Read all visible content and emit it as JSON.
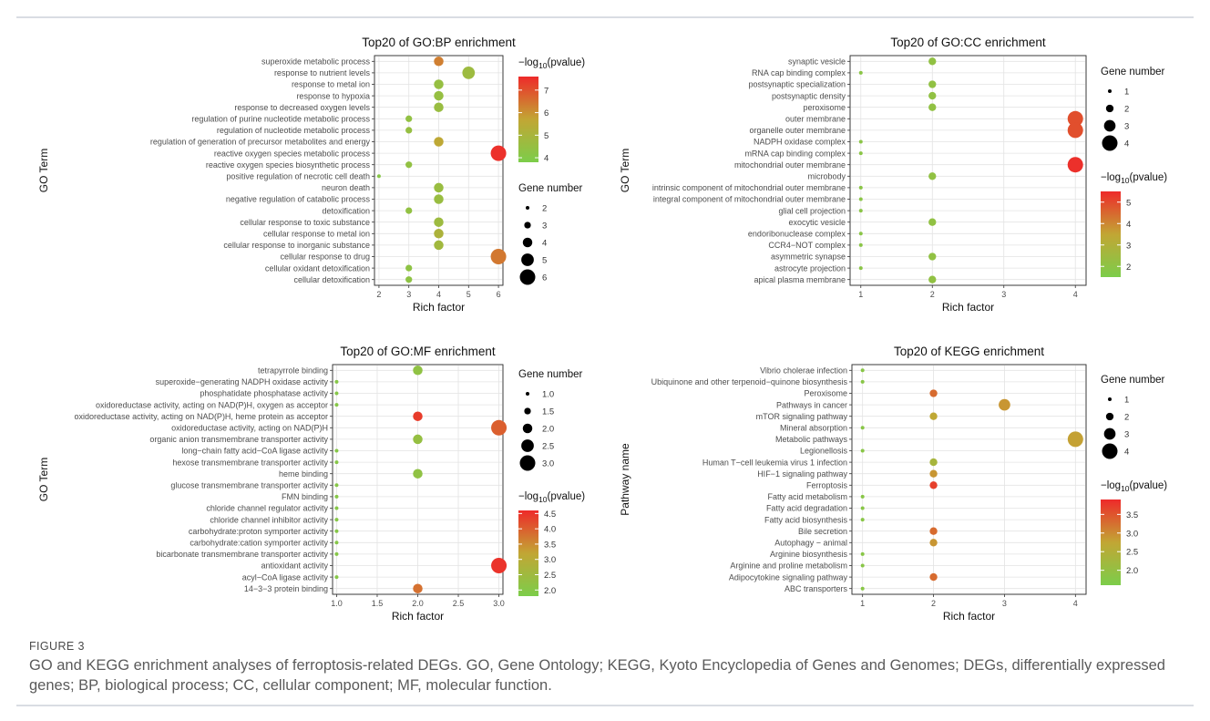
{
  "figure": {
    "label": "FIGURE 3",
    "caption": "GO and KEGG enrichment analyses of ferroptosis-related DEGs. GO, Gene Ontology; KEGG, Kyoto Encyclopedia of Genes and Genomes; DEGs, differentially expressed genes; BP, biological process; CC, cellular component; MF, molecular function."
  },
  "colors": {
    "low": "#7ccd4a",
    "mid": "#c2a634",
    "high": "#ee2a2a"
  },
  "chart_data": [
    {
      "type": "scatter",
      "title": "Top20 of GO:BP enrichment",
      "xlabel": "Rich factor",
      "ylabel": "GO Term",
      "xlim": [
        1.85,
        6.15
      ],
      "xticks": [
        2,
        3,
        4,
        5,
        6
      ],
      "grid": true,
      "terms": [
        "superoxide metabolic process",
        "response to nutrient levels",
        "response to metal ion",
        "response to hypoxia",
        "response to decreased oxygen levels",
        "regulation of purine nucleotide metabolic process",
        "regulation of nucleotide metabolic process",
        "regulation of generation of precursor metabolites and energy",
        "reactive oxygen species metabolic process",
        "reactive oxygen species biosynthetic process",
        "positive regulation of necrotic cell death",
        "neuron death",
        "negative regulation of catabolic process",
        "detoxification",
        "cellular response to toxic substance",
        "cellular response to metal ion",
        "cellular response to inorganic substance",
        "cellular response to drug",
        "cellular oxidant detoxification",
        "cellular detoxification"
      ],
      "rich_factor": [
        4,
        5,
        4,
        4,
        4,
        3,
        3,
        4,
        6,
        3,
        2,
        4,
        4,
        3,
        4,
        4,
        4,
        6,
        3,
        3
      ],
      "gene_number": [
        4,
        5,
        4,
        4,
        4,
        3,
        3,
        4,
        6,
        3,
        2,
        4,
        4,
        3,
        4,
        4,
        4,
        6,
        3,
        3
      ],
      "neg_log10_p": [
        6.3,
        4.7,
        4.5,
        4.5,
        4.6,
        4.4,
        4.5,
        5.6,
        7.5,
        4.4,
        4.1,
        4.6,
        4.6,
        4.4,
        4.7,
        5.1,
        4.8,
        6.4,
        4.3,
        4.3
      ],
      "color_legend": {
        "title_prefix": "−log",
        "title_sub": "10",
        "title_suffix": "(pvalue)",
        "ticks": [
          7,
          6,
          5,
          4
        ],
        "range": [
          3.8,
          7.6
        ]
      },
      "size_legend": {
        "title": "Gene number",
        "labels": [
          "2",
          "3",
          "4",
          "5",
          "6"
        ],
        "values": [
          2,
          3,
          4,
          5,
          6
        ]
      }
    },
    {
      "type": "scatter",
      "title": "Top20 of GO:CC enrichment",
      "xlabel": "Rich factor",
      "ylabel": "GO Term",
      "xlim": [
        0.85,
        4.15
      ],
      "xticks": [
        1,
        2,
        3,
        4
      ],
      "grid": true,
      "terms": [
        "synaptic vesicle",
        "RNA cap binding complex",
        "postsynaptic specialization",
        "postsynaptic density",
        "peroxisome",
        "outer membrane",
        "organelle outer membrane",
        "NADPH oxidase complex",
        "mRNA cap binding complex",
        "mitochondrial outer membrane",
        "microbody",
        "intrinsic component of mitochondrial outer membrane",
        "integral component of mitochondrial outer membrane",
        "glial cell projection",
        "exocytic vesicle",
        "endoribonuclease complex",
        "CCR4−NOT complex",
        "asymmetric synapse",
        "astrocyte projection",
        "apical plasma membrane"
      ],
      "rich_factor": [
        2,
        1,
        2,
        2,
        2,
        4,
        4,
        1,
        1,
        4,
        2,
        1,
        1,
        1,
        2,
        1,
        1,
        2,
        1,
        2
      ],
      "gene_number": [
        2,
        1,
        2,
        2,
        2,
        4,
        4,
        1,
        1,
        4,
        2,
        1,
        1,
        1,
        2,
        1,
        1,
        2,
        1,
        2
      ],
      "neg_log10_p": [
        2.1,
        1.9,
        2.1,
        2.1,
        2.1,
        4.9,
        4.9,
        1.9,
        1.9,
        5.4,
        2.1,
        1.9,
        1.9,
        1.9,
        2.1,
        1.9,
        1.9,
        2.1,
        1.9,
        2.1
      ],
      "color_legend": {
        "title_prefix": "−log",
        "title_sub": "10",
        "title_suffix": "(pvalue)",
        "ticks": [
          5,
          4,
          3,
          2
        ],
        "range": [
          1.5,
          5.5
        ]
      },
      "size_legend": {
        "title": "Gene number",
        "labels": [
          "1",
          "2",
          "3",
          "4"
        ],
        "values": [
          1,
          2,
          3,
          4
        ]
      }
    },
    {
      "type": "scatter",
      "title": "Top20 of GO:MF enrichment",
      "xlabel": "Rich factor",
      "ylabel": "GO Term",
      "xlim": [
        0.95,
        3.05
      ],
      "xticks": [
        1.0,
        1.5,
        2.0,
        2.5,
        3.0
      ],
      "xtick_labels": [
        "1.0",
        "1.5",
        "2.0",
        "2.5",
        "3.0"
      ],
      "grid": true,
      "terms": [
        "tetrapyrrole binding",
        "superoxide−generating NADPH oxidase activity",
        "phosphatidate phosphatase activity",
        "oxidoreductase activity, acting on NAD(P)H, oxygen as acceptor",
        "oxidoreductase activity, acting on NAD(P)H, heme protein as acceptor",
        "oxidoreductase activity, acting on NAD(P)H",
        "organic anion transmembrane transporter activity",
        "long−chain fatty acid−CoA ligase activity",
        "hexose transmembrane transporter activity",
        "heme binding",
        "glucose transmembrane transporter activity",
        "FMN binding",
        "chloride channel regulator activity",
        "chloride channel inhibitor activity",
        "carbohydrate:proton symporter activity",
        "carbohydrate:cation symporter activity",
        "bicarbonate transmembrane transporter activity",
        "antioxidant activity",
        "acyl−CoA ligase activity",
        "14−3−3 protein binding"
      ],
      "rich_factor": [
        2,
        1,
        1,
        1,
        2,
        3,
        2,
        1,
        1,
        2,
        1,
        1,
        1,
        1,
        1,
        1,
        1,
        3,
        1,
        2
      ],
      "gene_number": [
        2,
        1,
        1,
        1,
        2,
        3,
        2,
        1,
        1,
        2,
        1,
        1,
        1,
        1,
        1,
        1,
        1,
        3,
        1,
        2
      ],
      "neg_log10_p": [
        2.2,
        2.0,
        2.0,
        2.0,
        4.4,
        4.0,
        2.3,
        2.0,
        2.0,
        2.2,
        2.0,
        2.0,
        2.0,
        2.0,
        2.0,
        2.0,
        2.0,
        4.5,
        2.0,
        3.8
      ],
      "color_legend": {
        "title_prefix": "−log",
        "title_sub": "10",
        "title_suffix": "(pvalue)",
        "ticks": [
          4.5,
          4.0,
          3.5,
          3.0,
          2.5,
          2.0
        ],
        "tick_labels": [
          "4.5",
          "4.0",
          "3.5",
          "3.0",
          "2.5",
          "2.0"
        ],
        "range": [
          1.8,
          4.6
        ]
      },
      "size_legend": {
        "title": "Gene number",
        "labels": [
          "1.0",
          "1.5",
          "2.0",
          "2.5",
          "3.0"
        ],
        "values": [
          1.0,
          1.5,
          2.0,
          2.5,
          3.0
        ]
      }
    },
    {
      "type": "scatter",
      "title": "Top20 of KEGG enrichment",
      "xlabel": "Rich factor",
      "ylabel": "Pathway name",
      "xlim": [
        0.85,
        4.15
      ],
      "xticks": [
        1,
        2,
        3,
        4
      ],
      "grid": true,
      "terms": [
        "Vibrio cholerae infection",
        "Ubiquinone and other terpenoid−quinone biosynthesis",
        "Peroxisome",
        "Pathways in cancer",
        "mTOR signaling pathway",
        "Mineral absorption",
        "Metabolic pathways",
        "Legionellosis",
        "Human T−cell leukemia virus 1 infection",
        "HIF−1 signaling pathway",
        "Ferroptosis",
        "Fatty acid metabolism",
        "Fatty acid degradation",
        "Fatty acid biosynthesis",
        "Bile secretion",
        "Autophagy − animal",
        "Arginine biosynthesis",
        "Arginine and proline metabolism",
        "Adipocytokine signaling pathway",
        "ABC transporters"
      ],
      "rich_factor": [
        1,
        1,
        2,
        3,
        2,
        1,
        4,
        1,
        2,
        2,
        2,
        1,
        1,
        1,
        2,
        2,
        1,
        1,
        2,
        1
      ],
      "gene_number": [
        1,
        1,
        2,
        3,
        2,
        1,
        4,
        1,
        2,
        2,
        2,
        1,
        1,
        1,
        2,
        2,
        1,
        1,
        2,
        1
      ],
      "neg_log10_p": [
        1.8,
        1.8,
        3.3,
        2.9,
        2.7,
        1.8,
        2.8,
        1.8,
        2.3,
        2.9,
        3.7,
        1.8,
        1.8,
        1.8,
        3.3,
        2.9,
        1.8,
        1.8,
        3.3,
        1.8
      ],
      "color_legend": {
        "title_prefix": "−log",
        "title_sub": "10",
        "title_suffix": "(pvalue)",
        "ticks": [
          3.5,
          3.0,
          2.5,
          2.0
        ],
        "tick_labels": [
          "3.5",
          "3.0",
          "2.5",
          "2.0"
        ],
        "range": [
          1.6,
          3.9
        ]
      },
      "size_legend": {
        "title": "Gene number",
        "labels": [
          "1",
          "2",
          "3",
          "4"
        ],
        "values": [
          1,
          2,
          3,
          4
        ]
      }
    }
  ]
}
